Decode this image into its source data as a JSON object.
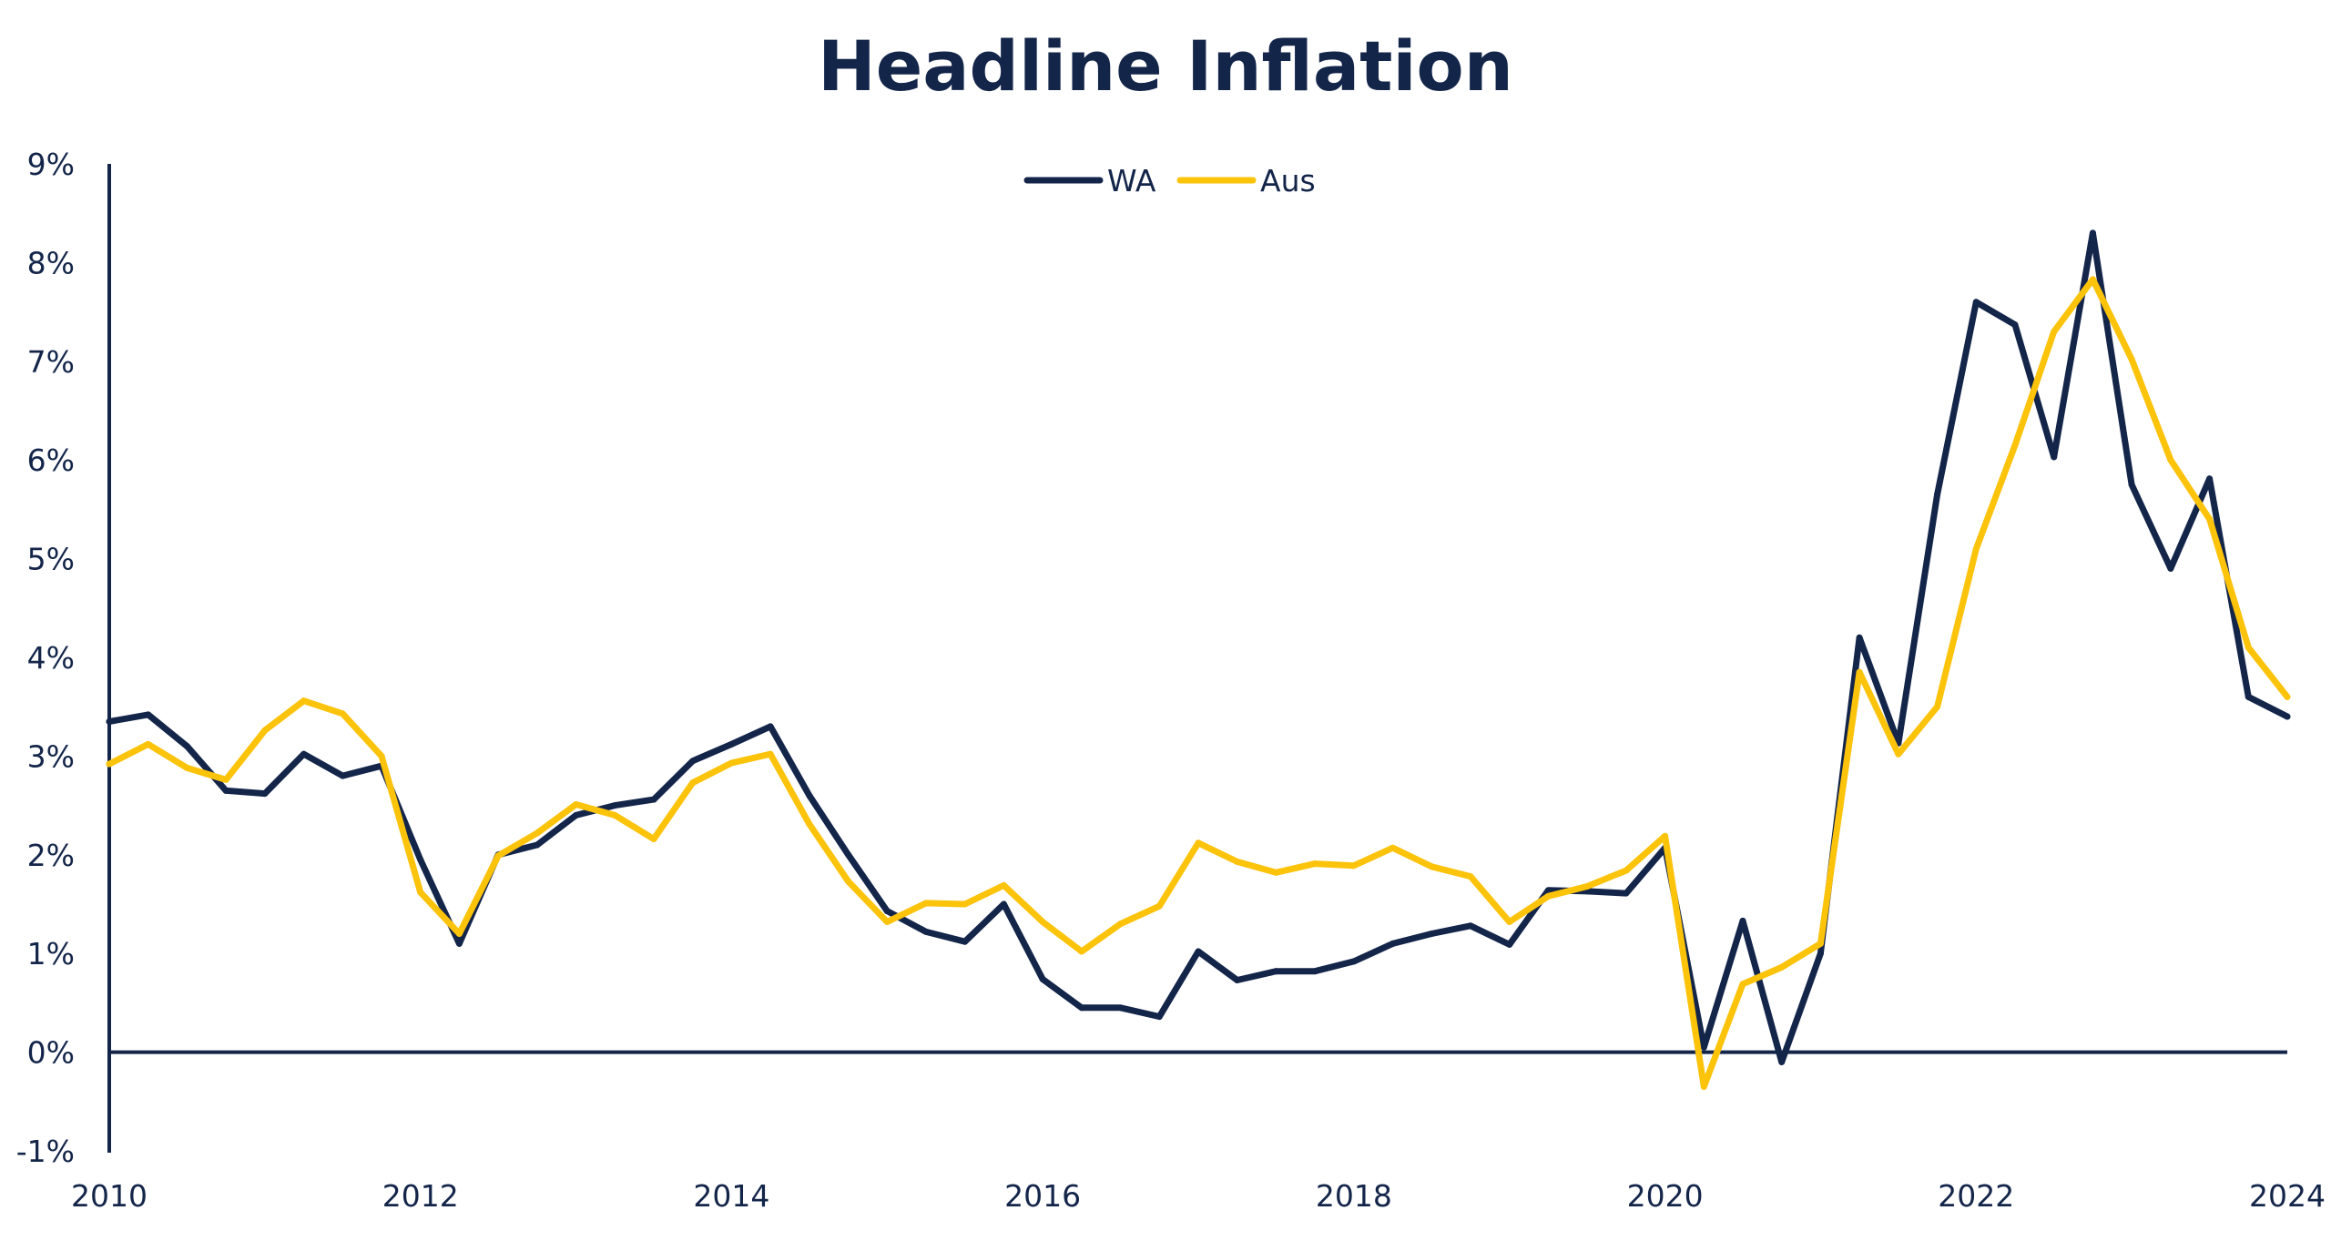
{
  "chart_data": {
    "type": "line",
    "title": "Headline Inflation",
    "xlabel": "",
    "ylabel": "",
    "x_ticks": [
      "2010",
      "2012",
      "2014",
      "2016",
      "2018",
      "2020",
      "2022",
      "2024"
    ],
    "xlim": [
      2010,
      2024
    ],
    "y_ticks": [
      "-1%",
      "0%",
      "1%",
      "2%",
      "3%",
      "4%",
      "5%",
      "6%",
      "7%",
      "8%",
      "9%"
    ],
    "ylim": [
      -1,
      9
    ],
    "grid": false,
    "legend_position": "top-center",
    "x": [
      "2010 Q1",
      "2010 Q2",
      "2010 Q3",
      "2010 Q4",
      "2011 Q1",
      "2011 Q2",
      "2011 Q3",
      "2011 Q4",
      "2012 Q1",
      "2012 Q2",
      "2012 Q3",
      "2012 Q4",
      "2013 Q1",
      "2013 Q2",
      "2013 Q3",
      "2013 Q4",
      "2014 Q1",
      "2014 Q2",
      "2014 Q3",
      "2014 Q4",
      "2015 Q1",
      "2015 Q2",
      "2015 Q3",
      "2015 Q4",
      "2016 Q1",
      "2016 Q2",
      "2016 Q3",
      "2016 Q4",
      "2017 Q1",
      "2017 Q2",
      "2017 Q3",
      "2017 Q4",
      "2018 Q1",
      "2018 Q2",
      "2018 Q3",
      "2018 Q4",
      "2019 Q1",
      "2019 Q2",
      "2019 Q3",
      "2019 Q4",
      "2020 Q1",
      "2020 Q2",
      "2020 Q3",
      "2020 Q4",
      "2021 Q1",
      "2021 Q2",
      "2021 Q3",
      "2021 Q4",
      "2022 Q1",
      "2022 Q2",
      "2022 Q3",
      "2022 Q4",
      "2023 Q1",
      "2023 Q2",
      "2023 Q3",
      "2023 Q4",
      "2024 Q1"
    ],
    "series": [
      {
        "name": "WA",
        "color": "#14254a",
        "values": [
          3.35,
          3.42,
          3.1,
          2.65,
          2.62,
          3.02,
          2.8,
          2.9,
          1.95,
          1.1,
          2.0,
          2.1,
          2.4,
          2.5,
          2.56,
          2.95,
          3.12,
          3.3,
          2.6,
          2.0,
          1.43,
          1.22,
          1.12,
          1.5,
          0.74,
          0.45,
          0.45,
          0.36,
          1.02,
          0.73,
          0.82,
          0.82,
          0.92,
          1.1,
          1.2,
          1.28,
          1.09,
          1.64,
          1.63,
          1.61,
          2.07,
          0.05,
          1.33,
          -0.1,
          1.0,
          4.2,
          3.13,
          5.65,
          7.6,
          7.37,
          6.03,
          8.3,
          5.75,
          4.9,
          5.81,
          3.6,
          3.4
        ]
      },
      {
        "name": "Aus",
        "color": "#fcc30b",
        "values": [
          2.92,
          3.12,
          2.88,
          2.76,
          3.26,
          3.56,
          3.43,
          3.0,
          1.62,
          1.2,
          1.99,
          2.22,
          2.51,
          2.4,
          2.16,
          2.73,
          2.93,
          3.02,
          2.31,
          1.73,
          1.32,
          1.51,
          1.5,
          1.69,
          1.32,
          1.02,
          1.3,
          1.48,
          2.12,
          1.93,
          1.82,
          1.91,
          1.89,
          2.07,
          1.88,
          1.78,
          1.32,
          1.58,
          1.68,
          1.84,
          2.19,
          -0.35,
          0.69,
          0.86,
          1.1,
          3.85,
          3.02,
          3.5,
          5.1,
          6.15,
          7.3,
          7.83,
          7.02,
          6.0,
          5.4,
          4.1,
          3.6
        ]
      }
    ]
  }
}
